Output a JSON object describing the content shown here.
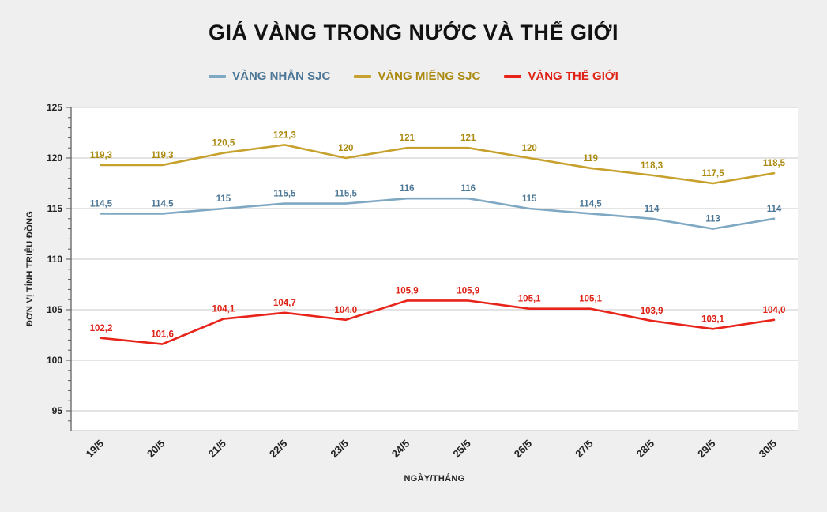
{
  "title": "GIÁ VÀNG TRONG NƯỚC VÀ THẾ GIỚI",
  "chart_data": {
    "type": "line",
    "x": [
      "19/5",
      "20/5",
      "21/5",
      "22/5",
      "23/5",
      "24/5",
      "25/5",
      "26/5",
      "27/5",
      "28/5",
      "29/5",
      "30/5"
    ],
    "xlabel": "NGÀY/THÁNG",
    "ylabel": "ĐƠN VỊ TÍNH TRIỆU ĐỒNG",
    "ylim": [
      93,
      125
    ],
    "yticks": [
      95,
      100,
      105,
      110,
      115,
      120,
      125
    ],
    "grid": true,
    "legend_position": "top",
    "series": [
      {
        "name": "VÀNG NHẪN SJC",
        "color": "#7fa8c3",
        "text_color": "#4d7796",
        "values": [
          114.5,
          114.5,
          115,
          115.5,
          115.5,
          116,
          116,
          115,
          114.5,
          114,
          113,
          114
        ],
        "labels": [
          "114,5",
          "114,5",
          "115",
          "115,5",
          "115,5",
          "116",
          "116",
          "115",
          "114,5",
          "114",
          "113",
          "114"
        ]
      },
      {
        "name": "VÀNG MIẾNG SJC",
        "color": "#c7a12d",
        "text_color": "#ab8a10",
        "values": [
          119.3,
          119.3,
          120.5,
          121.3,
          120,
          121,
          121,
          120,
          119,
          118.3,
          117.5,
          118.5
        ],
        "labels": [
          "119,3",
          "119,3",
          "120,5",
          "121,3",
          "120",
          "121",
          "121",
          "120",
          "119",
          "118,3",
          "117,5",
          "118,5"
        ]
      },
      {
        "name": "VÀNG THẾ GIỚI",
        "color": "#e8241a",
        "text_color": "#df2116",
        "values": [
          102.2,
          101.6,
          104.1,
          104.7,
          104.0,
          105.9,
          105.9,
          105.1,
          105.1,
          103.9,
          103.1,
          104.0
        ],
        "labels": [
          "102,2",
          "101,6",
          "104,1",
          "104,7",
          "104,0",
          "105,9",
          "105,9",
          "105,1",
          "105,1",
          "103,9",
          "103,1",
          "104,0"
        ]
      }
    ]
  }
}
